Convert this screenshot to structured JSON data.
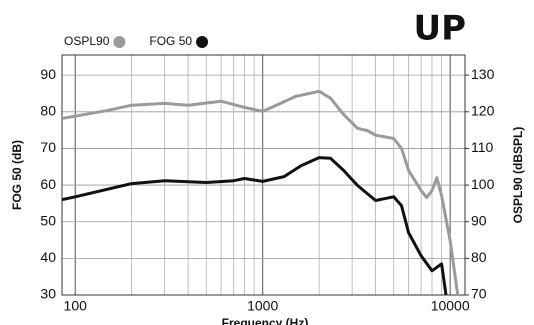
{
  "chart_data": {
    "type": "line",
    "title": "UP",
    "x_label": "Frequency (Hz)",
    "y_label": "FOG 50 (dB)",
    "y2_label": "OSPL90 (dBSPL)",
    "xscale": "log",
    "xlim": [
      85,
      12000
    ],
    "xticks": [
      100,
      1000,
      10000
    ],
    "xminor": [
      200,
      300,
      400,
      500,
      600,
      700,
      800,
      900,
      2000,
      3000,
      4000,
      5000,
      6000,
      7000,
      8000,
      9000
    ],
    "ylim": [
      30,
      95.5
    ],
    "yticks": [
      30,
      40,
      50,
      60,
      70,
      80,
      90
    ],
    "y2lim": [
      70,
      135.5
    ],
    "y2ticks": [
      70,
      80,
      90,
      100,
      110,
      120,
      130
    ],
    "grid": true,
    "legend": "top-left",
    "series": [
      {
        "name": "OSPL90",
        "color": "#9a9a9a",
        "axis": "y2",
        "x": [
          85,
          100,
          150,
          200,
          300,
          400,
          600,
          800,
          1000,
          1200,
          1500,
          2000,
          2300,
          2700,
          3200,
          3600,
          4000,
          5000,
          5500,
          6000,
          7000,
          7500,
          8000,
          8500,
          9000,
          10000,
          11000
        ],
        "values": [
          118.2,
          118.8,
          120.4,
          121.8,
          122.3,
          121.8,
          122.9,
          121.2,
          120.1,
          121.9,
          124.2,
          125.6,
          123.7,
          119.3,
          115.5,
          114.9,
          113.6,
          112.7,
          110,
          104,
          98.5,
          96.6,
          98.5,
          102,
          97.1,
          84.8,
          69.7
        ]
      },
      {
        "name": "FOG 50",
        "color": "#111111",
        "x": [
          85,
          100,
          200,
          300,
          500,
          700,
          800,
          1000,
          1300,
          1600,
          2000,
          2300,
          2700,
          3200,
          4000,
          5000,
          5500,
          6000,
          7000,
          8000,
          9000,
          9500
        ],
        "values": [
          56,
          56.8,
          60.4,
          61.2,
          60.7,
          61.2,
          61.8,
          61,
          62.3,
          65.3,
          67.5,
          67.3,
          64,
          59.9,
          55.8,
          56.8,
          54.4,
          47,
          40.7,
          36.6,
          38.5,
          30
        ]
      }
    ]
  }
}
